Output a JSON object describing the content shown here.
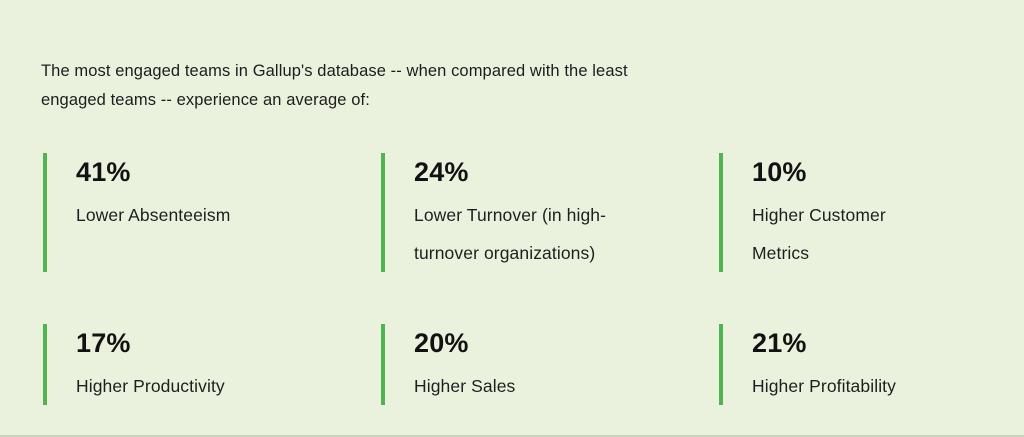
{
  "panel": {
    "background_color": "#EAF2DE",
    "accent_color": "#50B450",
    "text_color": "#1D1D1D",
    "intro_text": "The most engaged teams in Gallup's database -- when compared with the least engaged teams -- experience an average of:"
  },
  "stats": [
    {
      "value": "41%",
      "label": "Lower Absenteeism"
    },
    {
      "value": "24%",
      "label": "Lower Turnover (in high-turnover organizations)"
    },
    {
      "value": "10%",
      "label": "Higher Customer Metrics"
    },
    {
      "value": "17%",
      "label": "Higher Productivity"
    },
    {
      "value": "20%",
      "label": "Higher Sales"
    },
    {
      "value": "21%",
      "label": "Higher Profitability"
    }
  ]
}
